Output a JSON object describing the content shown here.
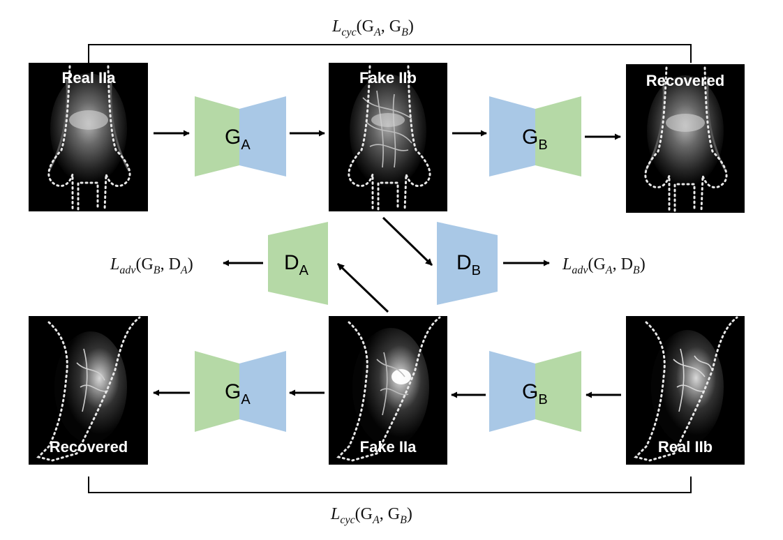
{
  "colors": {
    "green": "#b5d9a6",
    "blue": "#a9c8e6",
    "background": "#ffffff",
    "image_background": "#000000",
    "outline": "#e8e8e8"
  },
  "cycle_loss_top": {
    "main": "L",
    "sub": "cyc",
    "args": "(G",
    "a1": "A",
    "sep": ", G",
    "a2": "B",
    "close": ")"
  },
  "cycle_loss_bottom": {
    "main": "L",
    "sub": "cyc",
    "args": "(G",
    "a1": "A",
    "sep": ", G",
    "a2": "B",
    "close": ")"
  },
  "adv_loss_left": {
    "main": "L",
    "sub": "adv",
    "args": "(G",
    "a1": "B",
    "sep": ", D",
    "a2": "A",
    "close": ")"
  },
  "adv_loss_right": {
    "main": "L",
    "sub": "adv",
    "args": "(G",
    "a1": "A",
    "sep": ", D",
    "a2": "B",
    "close": ")"
  },
  "panels": {
    "real_iia": "Real IIa",
    "fake_iib": "Fake IIb",
    "recovered_top": "Recovered",
    "recovered_bottom": "Recovered",
    "fake_iia": "Fake IIa",
    "real_iib": "Real IIb"
  },
  "nets": {
    "ga_top": {
      "letter": "G",
      "sub": "A"
    },
    "gb_top": {
      "letter": "G",
      "sub": "B"
    },
    "da": {
      "letter": "D",
      "sub": "A"
    },
    "db": {
      "letter": "D",
      "sub": "B"
    },
    "ga_bottom": {
      "letter": "G",
      "sub": "A"
    },
    "gb_bottom": {
      "letter": "G",
      "sub": "B"
    }
  }
}
